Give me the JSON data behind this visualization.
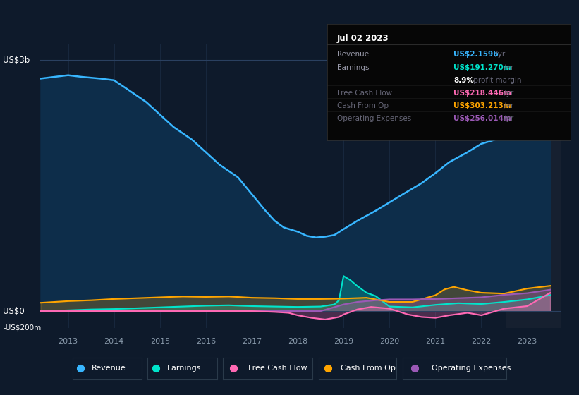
{
  "background_color": "#0e1a2b",
  "plot_bg_color": "#0e1a2b",
  "highlight_bg_color": "#162030",
  "fig_width": 8.21,
  "fig_height": 5.6,
  "dpi": 100,
  "ylim": [
    -200,
    3200
  ],
  "xlim": [
    2012.4,
    2023.75
  ],
  "xtick_years": [
    2013,
    2014,
    2015,
    2016,
    2017,
    2018,
    2019,
    2020,
    2021,
    2022,
    2023
  ],
  "line_colors": {
    "revenue": "#38b6ff",
    "earnings": "#00e5cc",
    "free_cash_flow": "#ff69b4",
    "cash_from_op": "#ffa500",
    "operating_expenses": "#9b59b6"
  },
  "revenue_fill_color": "#0d2d4a",
  "tooltip": {
    "title": "Jul 02 2023",
    "rows": [
      {
        "label": "Revenue",
        "value": "US$2.159b",
        "suffix": " /yr",
        "color": "#38b6ff",
        "dim": false
      },
      {
        "label": "Earnings",
        "value": "US$191.270m",
        "suffix": " /yr",
        "color": "#00e5cc",
        "dim": false
      },
      {
        "label": "",
        "value": "8.9%",
        "suffix": " profit margin",
        "color": "white",
        "dim": true
      },
      {
        "label": "Free Cash Flow",
        "value": "US$218.446m",
        "suffix": " /yr",
        "color": "#ff69b4",
        "dim": true
      },
      {
        "label": "Cash From Op",
        "value": "US$303.213m",
        "suffix": " /yr",
        "color": "#ffa500",
        "dim": true
      },
      {
        "label": "Operating Expenses",
        "value": "US$256.014m",
        "suffix": " /yr",
        "color": "#9b59b6",
        "dim": true
      }
    ]
  },
  "revenue": {
    "years": [
      2012.4,
      2012.7,
      2013.0,
      2013.3,
      2013.7,
      2014.0,
      2014.3,
      2014.7,
      2015.0,
      2015.3,
      2015.7,
      2016.0,
      2016.3,
      2016.7,
      2017.0,
      2017.3,
      2017.5,
      2017.7,
      2018.0,
      2018.2,
      2018.4,
      2018.6,
      2018.8,
      2019.0,
      2019.3,
      2019.7,
      2020.0,
      2020.3,
      2020.7,
      2021.0,
      2021.3,
      2021.7,
      2022.0,
      2022.3,
      2022.7,
      2023.0,
      2023.5
    ],
    "values": [
      2780,
      2800,
      2820,
      2800,
      2780,
      2760,
      2650,
      2500,
      2350,
      2200,
      2050,
      1900,
      1750,
      1600,
      1400,
      1200,
      1080,
      1000,
      950,
      900,
      880,
      890,
      910,
      980,
      1080,
      1200,
      1300,
      1400,
      1530,
      1650,
      1780,
      1900,
      2000,
      2050,
      2100,
      2159,
      2159
    ]
  },
  "earnings": {
    "years": [
      2012.4,
      2013.0,
      2013.5,
      2014.0,
      2014.5,
      2015.0,
      2015.5,
      2016.0,
      2016.5,
      2017.0,
      2017.5,
      2018.0,
      2018.5,
      2018.8,
      2018.9,
      2019.0,
      2019.15,
      2019.3,
      2019.5,
      2019.7,
      2020.0,
      2020.5,
      2021.0,
      2021.5,
      2022.0,
      2022.5,
      2023.0,
      2023.5
    ],
    "values": [
      0,
      10,
      20,
      25,
      35,
      45,
      55,
      65,
      70,
      60,
      55,
      50,
      55,
      80,
      130,
      420,
      370,
      300,
      220,
      180,
      55,
      45,
      75,
      95,
      85,
      110,
      140,
      191
    ]
  },
  "free_cash_flow": {
    "years": [
      2012.4,
      2013.0,
      2013.5,
      2014.0,
      2014.5,
      2015.0,
      2015.5,
      2016.0,
      2016.5,
      2017.0,
      2017.5,
      2017.8,
      2018.0,
      2018.3,
      2018.6,
      2018.9,
      2019.0,
      2019.3,
      2019.6,
      2020.0,
      2020.4,
      2020.7,
      2021.0,
      2021.3,
      2021.7,
      2022.0,
      2022.5,
      2023.0,
      2023.5
    ],
    "values": [
      0,
      0,
      0,
      0,
      0,
      0,
      0,
      0,
      0,
      0,
      -10,
      -20,
      -50,
      -80,
      -100,
      -70,
      -40,
      20,
      50,
      30,
      -40,
      -70,
      -80,
      -50,
      -20,
      -50,
      30,
      60,
      218
    ]
  },
  "cash_from_op": {
    "years": [
      2012.4,
      2013.0,
      2013.5,
      2014.0,
      2014.5,
      2015.0,
      2015.5,
      2016.0,
      2016.5,
      2017.0,
      2017.5,
      2018.0,
      2018.5,
      2019.0,
      2019.5,
      2020.0,
      2020.5,
      2021.0,
      2021.2,
      2021.4,
      2021.7,
      2022.0,
      2022.5,
      2023.0,
      2023.5
    ],
    "values": [
      100,
      120,
      130,
      145,
      155,
      165,
      175,
      170,
      175,
      160,
      155,
      145,
      145,
      150,
      160,
      110,
      110,
      190,
      260,
      290,
      250,
      220,
      210,
      270,
      303
    ]
  },
  "operating_expenses": {
    "years": [
      2012.4,
      2013.0,
      2013.5,
      2014.0,
      2014.5,
      2015.0,
      2015.5,
      2016.0,
      2016.5,
      2017.0,
      2017.5,
      2018.0,
      2018.5,
      2019.0,
      2019.3,
      2019.7,
      2020.0,
      2020.5,
      2021.0,
      2021.5,
      2022.0,
      2022.5,
      2023.0,
      2023.5
    ],
    "values": [
      0,
      0,
      0,
      0,
      0,
      0,
      0,
      0,
      0,
      0,
      0,
      0,
      0,
      80,
      110,
      130,
      140,
      140,
      145,
      155,
      165,
      195,
      215,
      256
    ]
  },
  "highlight_x_start": 2022.55,
  "highlight_x_end": 2023.75
}
